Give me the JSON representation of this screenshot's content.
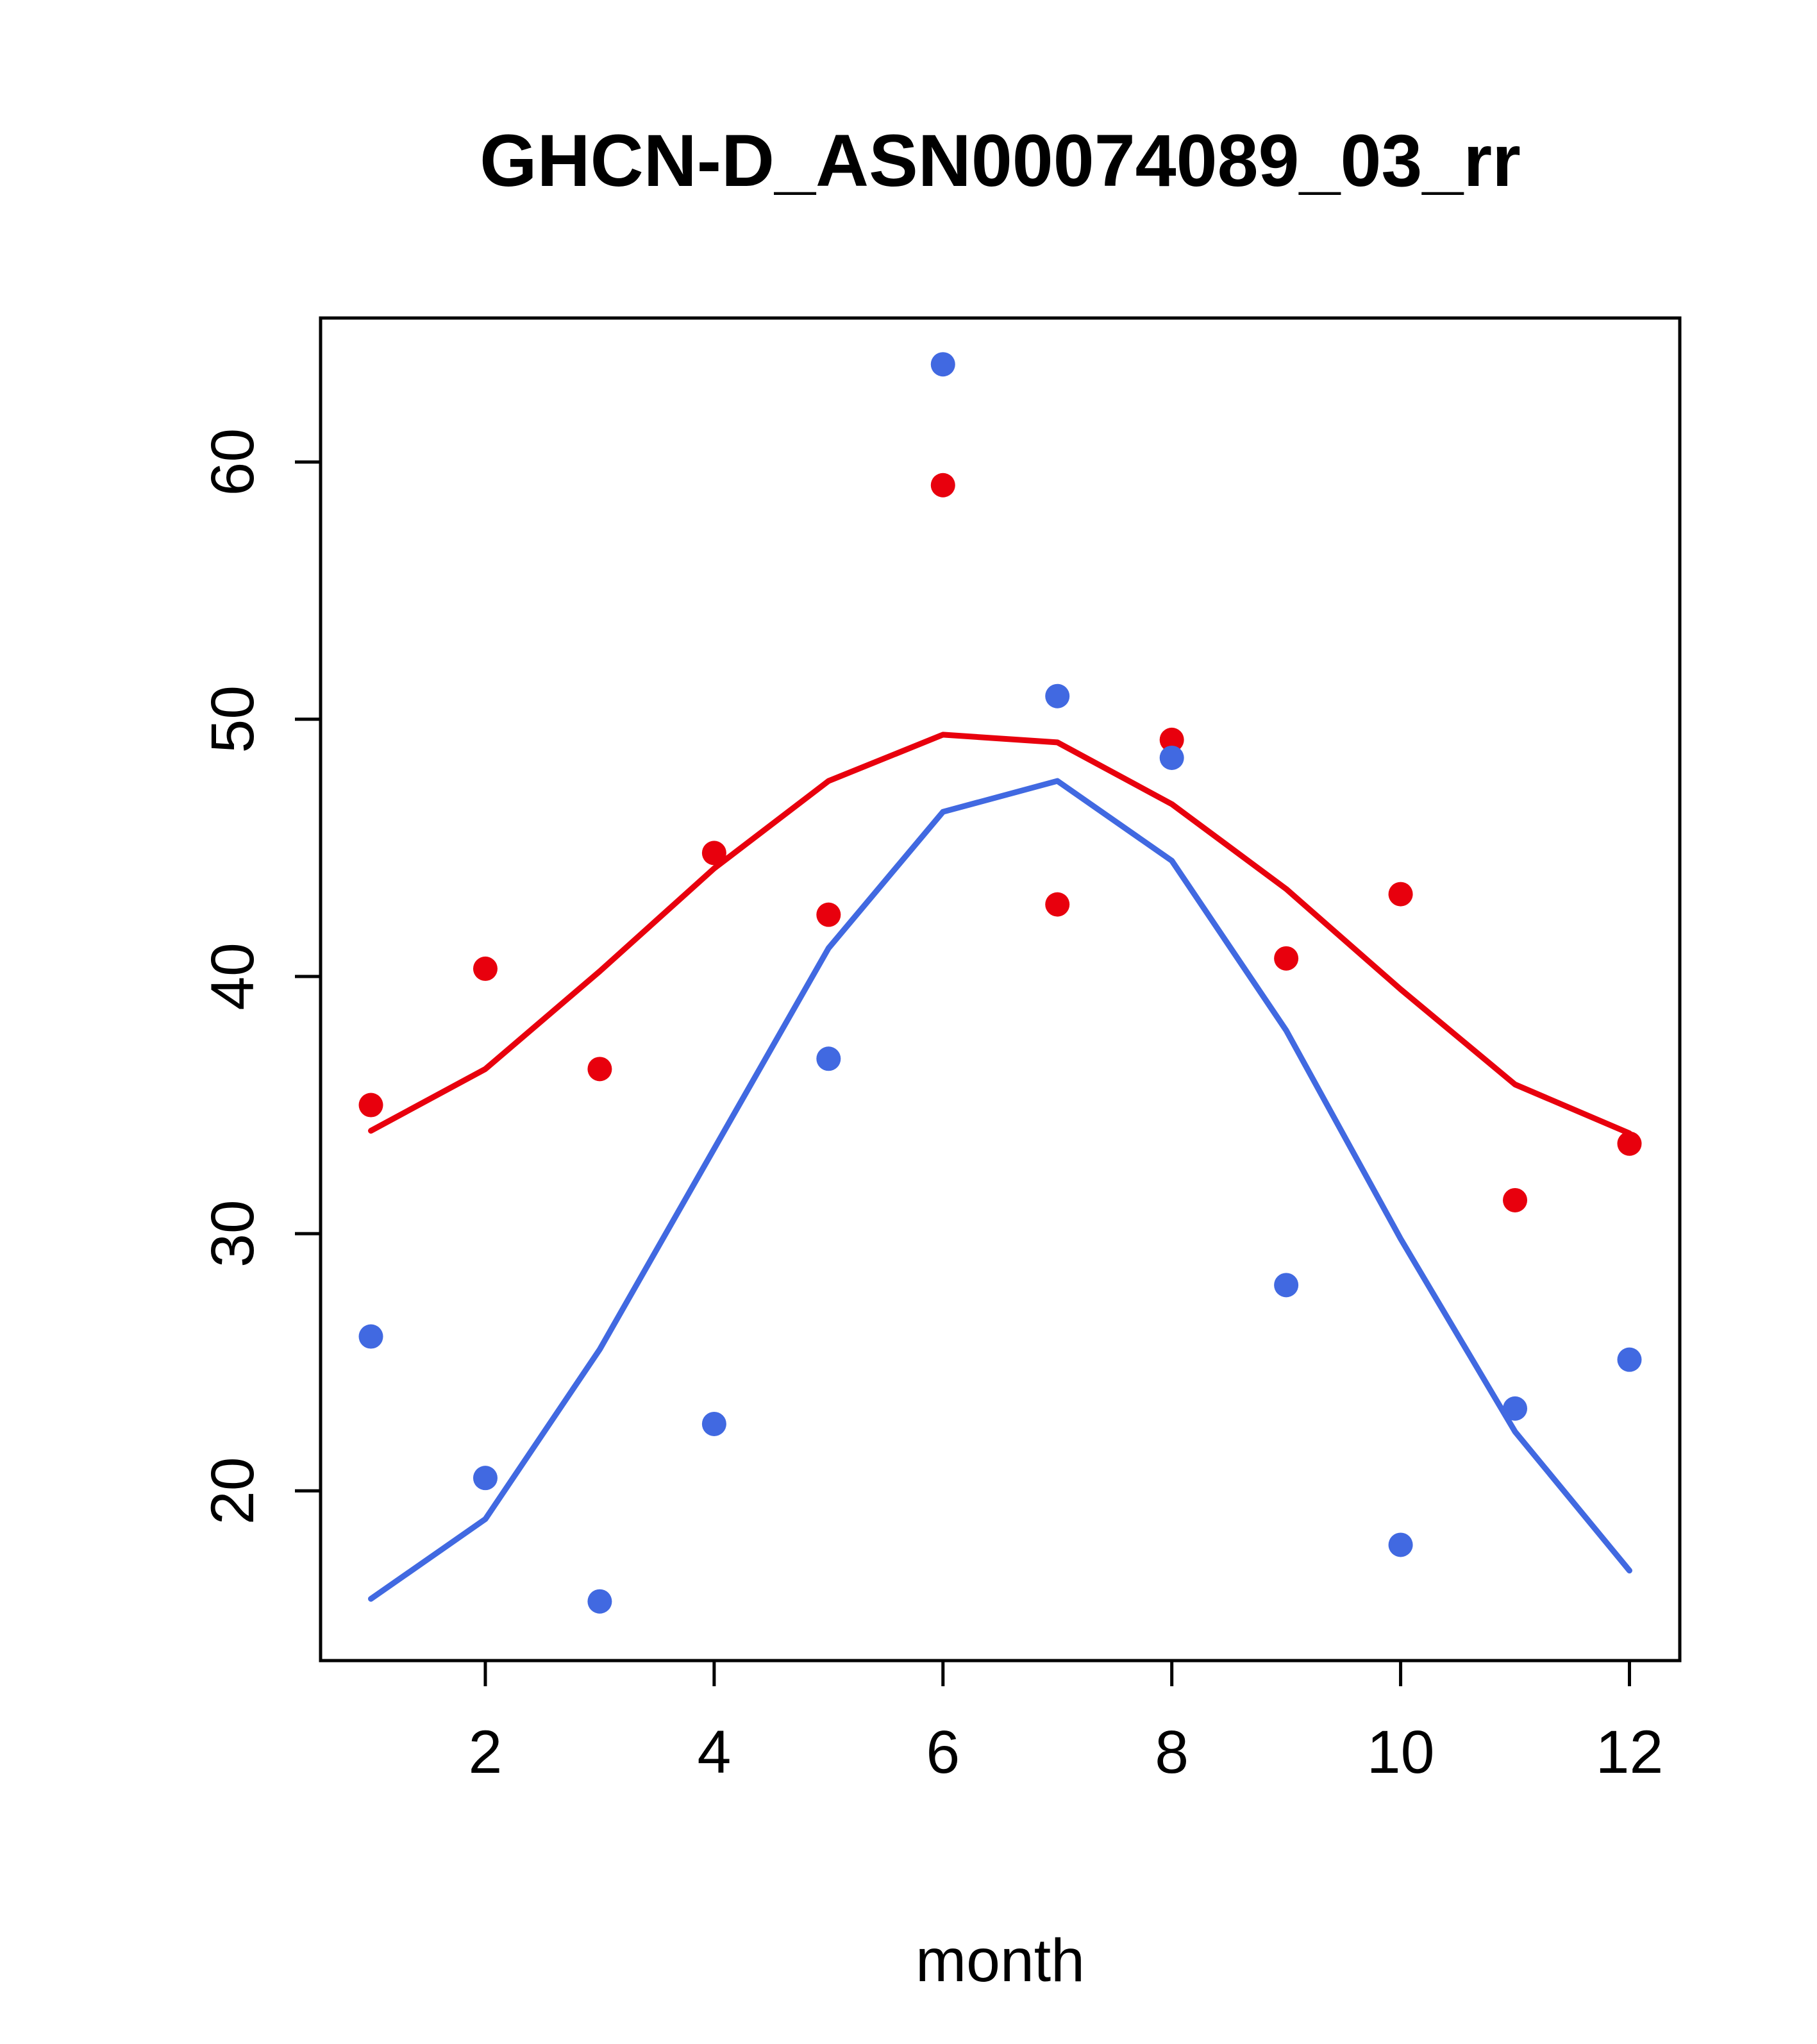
{
  "chart_data": {
    "type": "scatter",
    "title": "GHCN-D_ASN00074089_03_rr",
    "xlabel": "month",
    "ylabel": "",
    "x": [
      1,
      2,
      3,
      4,
      5,
      6,
      7,
      8,
      9,
      10,
      11,
      12
    ],
    "series": [
      {
        "name": "red-points",
        "kind": "scatter",
        "color": "#e8000d",
        "values": [
          35.0,
          40.3,
          36.4,
          44.8,
          42.4,
          59.1,
          42.8,
          49.2,
          40.7,
          43.2,
          31.3,
          33.5
        ]
      },
      {
        "name": "red-trend-line",
        "kind": "line",
        "color": "#e8000d",
        "values": [
          34.0,
          36.4,
          40.2,
          44.2,
          47.6,
          49.4,
          49.1,
          46.7,
          43.4,
          39.5,
          35.8,
          33.9
        ]
      },
      {
        "name": "blue-points",
        "kind": "scatter",
        "color": "#4169e1",
        "values": [
          26.0,
          20.5,
          15.7,
          22.6,
          36.8,
          63.8,
          50.9,
          48.5,
          28.0,
          17.9,
          23.2,
          25.1
        ]
      },
      {
        "name": "blue-trend-line",
        "kind": "line",
        "color": "#4169e1",
        "values": [
          15.8,
          18.9,
          25.5,
          33.3,
          41.1,
          46.4,
          47.6,
          44.5,
          37.9,
          29.8,
          22.3,
          16.9
        ]
      }
    ],
    "xticks": [
      2,
      4,
      6,
      8,
      10,
      12
    ],
    "yticks": [
      20,
      30,
      40,
      50,
      60
    ],
    "xlim": [
      0.56,
      12.44
    ],
    "ylim": [
      13.4,
      65.6
    ],
    "grid": false,
    "legend": "none"
  }
}
